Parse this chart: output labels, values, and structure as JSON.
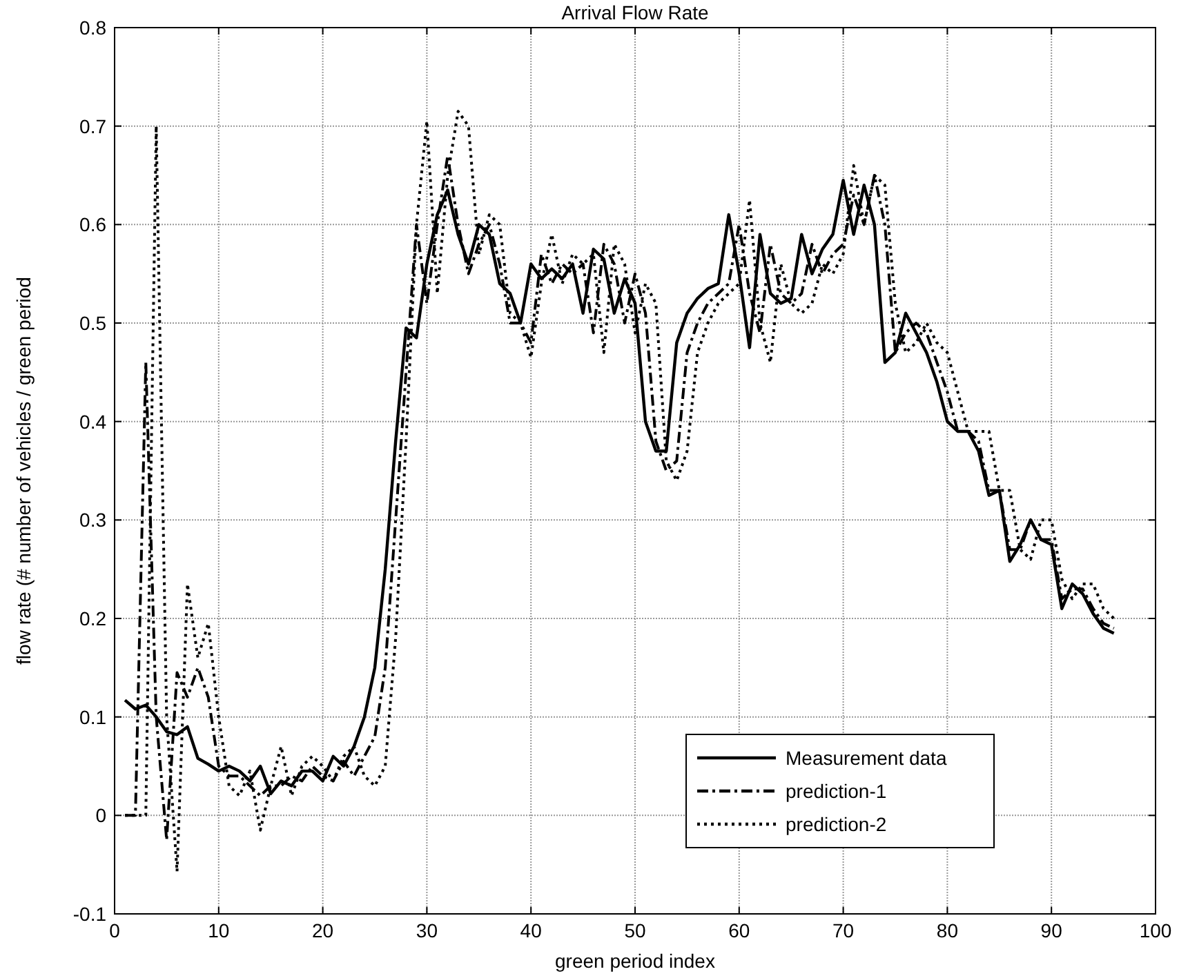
{
  "chart_data": {
    "type": "line",
    "title": "Arrival Flow Rate",
    "xlabel": "green period index",
    "ylabel": "flow rate (# number of vehicles / green period",
    "x": [
      1,
      2,
      3,
      4,
      5,
      6,
      7,
      8,
      9,
      10,
      11,
      12,
      13,
      14,
      15,
      16,
      17,
      18,
      19,
      20,
      21,
      22,
      23,
      24,
      25,
      26,
      27,
      28,
      29,
      30,
      31,
      32,
      33,
      34,
      35,
      36,
      37,
      38,
      39,
      40,
      41,
      42,
      43,
      44,
      45,
      46,
      47,
      48,
      49,
      50,
      51,
      52,
      53,
      54,
      55,
      56,
      57,
      58,
      59,
      60,
      61,
      62,
      63,
      64,
      65,
      66,
      67,
      68,
      69,
      70,
      71,
      72,
      73,
      74,
      75,
      76,
      77,
      78,
      79,
      80,
      81,
      82,
      83,
      84,
      85,
      86,
      87,
      88,
      89,
      90,
      91,
      92,
      93,
      94,
      95,
      96
    ],
    "series": [
      {
        "name": "Measurement data",
        "color": "#000000",
        "line_style": "solid",
        "values": [
          0.117,
          0.108,
          0.112,
          0.1,
          0.085,
          0.082,
          0.09,
          0.058,
          0.052,
          0.045,
          0.05,
          0.045,
          0.035,
          0.05,
          0.022,
          0.035,
          0.03,
          0.045,
          0.045,
          0.035,
          0.06,
          0.05,
          0.07,
          0.1,
          0.15,
          0.25,
          0.38,
          0.495,
          0.485,
          0.56,
          0.61,
          0.635,
          0.59,
          0.56,
          0.6,
          0.59,
          0.54,
          0.53,
          0.5,
          0.56,
          0.545,
          0.555,
          0.545,
          0.56,
          0.51,
          0.575,
          0.565,
          0.51,
          0.545,
          0.52,
          0.4,
          0.37,
          0.37,
          0.48,
          0.51,
          0.525,
          0.535,
          0.54,
          0.61,
          0.55,
          0.475,
          0.59,
          0.53,
          0.52,
          0.525,
          0.59,
          0.55,
          0.575,
          0.59,
          0.645,
          0.59,
          0.64,
          0.6,
          0.46,
          0.47,
          0.51,
          0.49,
          0.47,
          0.44,
          0.4,
          0.39,
          0.39,
          0.37,
          0.325,
          0.33,
          0.258,
          0.275,
          0.3,
          0.28,
          0.275,
          0.21,
          0.235,
          0.225,
          0.205,
          0.19,
          0.185
        ]
      },
      {
        "name": "prediction-1",
        "color": "#000000",
        "line_style": "dashdot",
        "values": [
          0,
          0,
          0.46,
          0.1,
          -0.025,
          0.145,
          0.12,
          0.15,
          0.12,
          0.05,
          0.04,
          0.04,
          0.03,
          0.02,
          0.03,
          0.03,
          0.04,
          0.035,
          0.05,
          0.04,
          0.035,
          0.055,
          0.04,
          0.06,
          0.08,
          0.15,
          0.3,
          0.45,
          0.6,
          0.52,
          0.6,
          0.67,
          0.6,
          0.55,
          0.58,
          0.6,
          0.56,
          0.5,
          0.5,
          0.48,
          0.57,
          0.54,
          0.56,
          0.55,
          0.56,
          0.49,
          0.58,
          0.56,
          0.5,
          0.55,
          0.51,
          0.38,
          0.35,
          0.36,
          0.47,
          0.5,
          0.52,
          0.53,
          0.54,
          0.6,
          0.53,
          0.49,
          0.58,
          0.53,
          0.52,
          0.53,
          0.58,
          0.55,
          0.57,
          0.58,
          0.63,
          0.6,
          0.65,
          0.6,
          0.47,
          0.49,
          0.5,
          0.49,
          0.46,
          0.43,
          0.39,
          0.39,
          0.38,
          0.33,
          0.33,
          0.27,
          0.27,
          0.3,
          0.28,
          0.28,
          0.22,
          0.23,
          0.23,
          0.21,
          0.195,
          0.19
        ]
      },
      {
        "name": "prediction-2",
        "color": "#000000",
        "line_style": "dotted",
        "values": [
          0,
          0,
          0,
          0.7,
          0.1,
          -0.057,
          0.235,
          0.16,
          0.195,
          0.1,
          0.03,
          0.02,
          0.045,
          -0.015,
          0.03,
          0.07,
          0.02,
          0.05,
          0.06,
          0.05,
          0.035,
          0.06,
          0.07,
          0.04,
          0.03,
          0.05,
          0.18,
          0.38,
          0.6,
          0.705,
          0.53,
          0.65,
          0.715,
          0.7,
          0.57,
          0.61,
          0.6,
          0.51,
          0.5,
          0.465,
          0.54,
          0.59,
          0.54,
          0.57,
          0.56,
          0.57,
          0.47,
          0.58,
          0.56,
          0.49,
          0.54,
          0.52,
          0.36,
          0.34,
          0.37,
          0.47,
          0.5,
          0.52,
          0.53,
          0.54,
          0.625,
          0.5,
          0.46,
          0.56,
          0.52,
          0.51,
          0.52,
          0.56,
          0.55,
          0.57,
          0.66,
          0.6,
          0.65,
          0.64,
          0.52,
          0.47,
          0.48,
          0.5,
          0.48,
          0.47,
          0.43,
          0.39,
          0.39,
          0.39,
          0.33,
          0.33,
          0.27,
          0.26,
          0.3,
          0.3,
          0.24,
          0.22,
          0.235,
          0.235,
          0.21,
          0.2
        ]
      }
    ],
    "xlim": [
      0,
      100
    ],
    "xticks": [
      0,
      10,
      20,
      30,
      40,
      50,
      60,
      70,
      80,
      90,
      100
    ],
    "ylim": [
      -0.1,
      0.8
    ],
    "yticks": [
      -0.1,
      0,
      0.1,
      0.2,
      0.3,
      0.4,
      0.5,
      0.6,
      0.7,
      0.8
    ],
    "grid": true,
    "legend": "bottom right",
    "marker": "none"
  }
}
